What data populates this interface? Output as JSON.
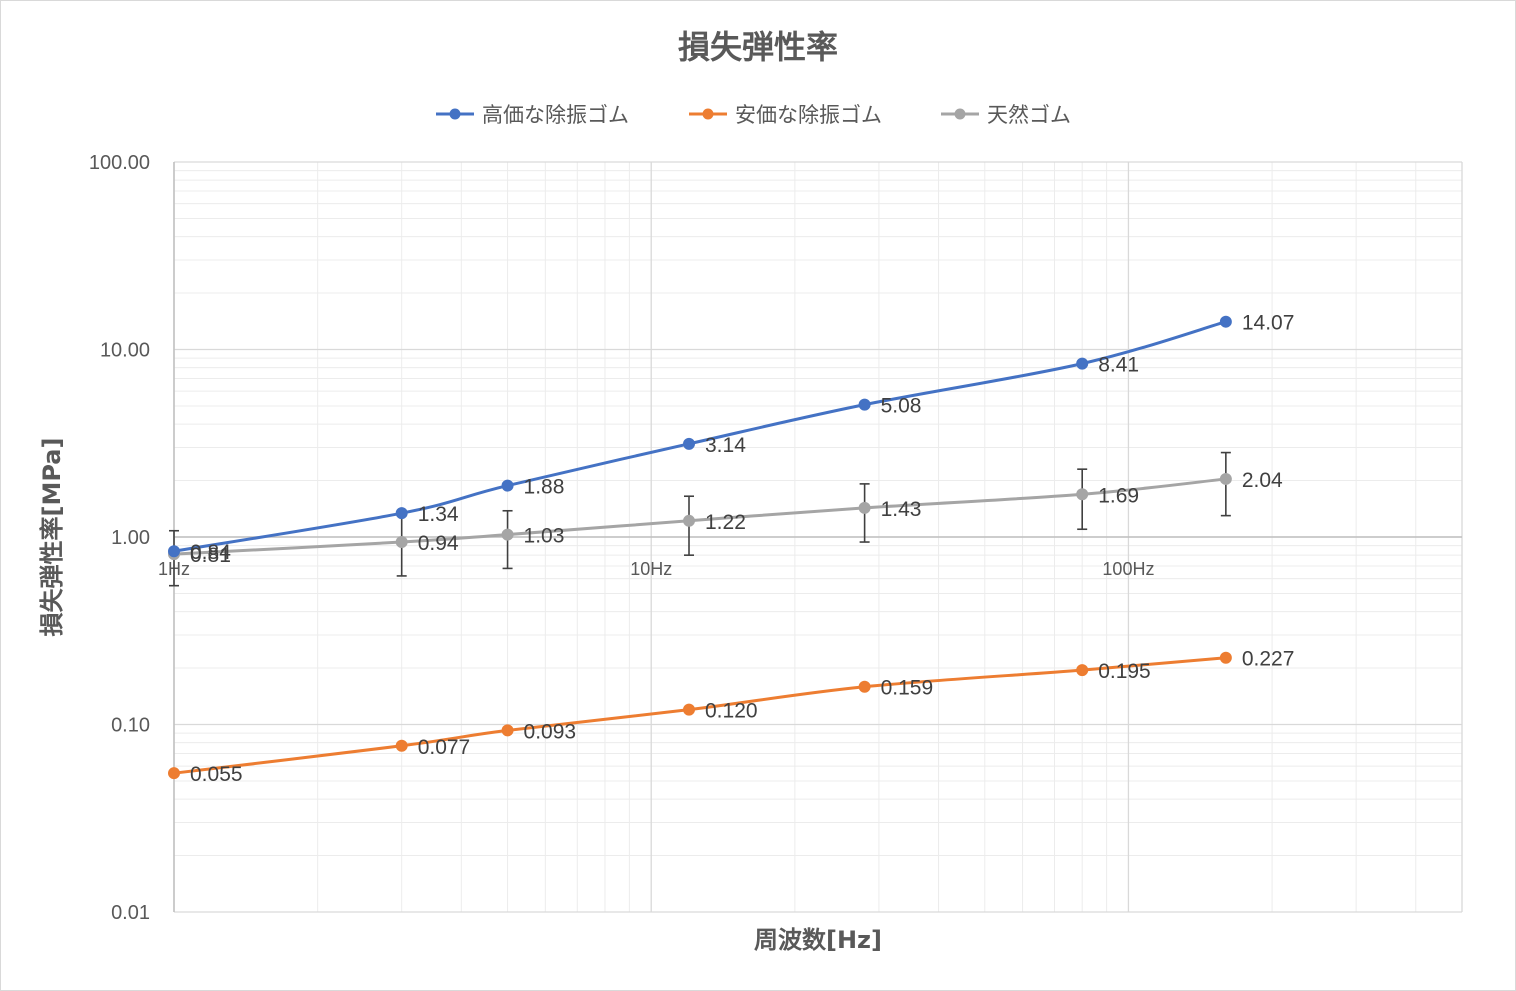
{
  "chart_data": {
    "type": "line",
    "title": "損失弾性率",
    "xlabel": "周波数[Hz]",
    "ylabel": "損失弾性率[MPa]",
    "x_scale": "log",
    "y_scale": "log",
    "xlim": [
      1,
      500
    ],
    "ylim": [
      0.01,
      100
    ],
    "y_ticks": [
      "100.00",
      "10.00",
      "1.00",
      "0.10",
      "0.01"
    ],
    "x_ticks": [
      {
        "value": 1,
        "label": "1Hz"
      },
      {
        "value": 10,
        "label": "10Hz"
      },
      {
        "value": 100,
        "label": "100Hz"
      }
    ],
    "legend_position": "top",
    "x": [
      1,
      3,
      5,
      12,
      28,
      80,
      160
    ],
    "series": [
      {
        "name": "高価な除振ゴム",
        "color": "#4472C4",
        "values": [
          0.84,
          1.34,
          1.88,
          3.14,
          5.08,
          8.41,
          14.07
        ],
        "labels": [
          "0.84",
          "1.34",
          "1.88",
          "3.14",
          "5.08",
          "8.41",
          "14.07"
        ]
      },
      {
        "name": "安価な除振ゴム",
        "color": "#ED7D31",
        "values": [
          0.055,
          0.077,
          0.093,
          0.12,
          0.159,
          0.195,
          0.227
        ],
        "labels": [
          "0.055",
          "0.077",
          "0.093",
          "0.120",
          "0.159",
          "0.195",
          "0.227"
        ]
      },
      {
        "name": "天然ゴム",
        "color": "#A5A5A5",
        "values": [
          0.81,
          0.94,
          1.03,
          1.22,
          1.43,
          1.69,
          2.04
        ],
        "labels": [
          "0.81",
          "0.94",
          "1.03",
          "1.22",
          "1.43",
          "1.69",
          "2.04"
        ],
        "error_bars": {
          "low": [
            0.55,
            0.62,
            0.68,
            0.8,
            0.94,
            1.1,
            1.3
          ],
          "high": [
            1.08,
            1.3,
            1.38,
            1.65,
            1.92,
            2.3,
            2.82
          ]
        }
      }
    ],
    "colors": {
      "grid_major": "#d9d9d9",
      "grid_minor": "#ececec",
      "axis": "#bfbfbf",
      "error_bar": "#404040"
    }
  }
}
